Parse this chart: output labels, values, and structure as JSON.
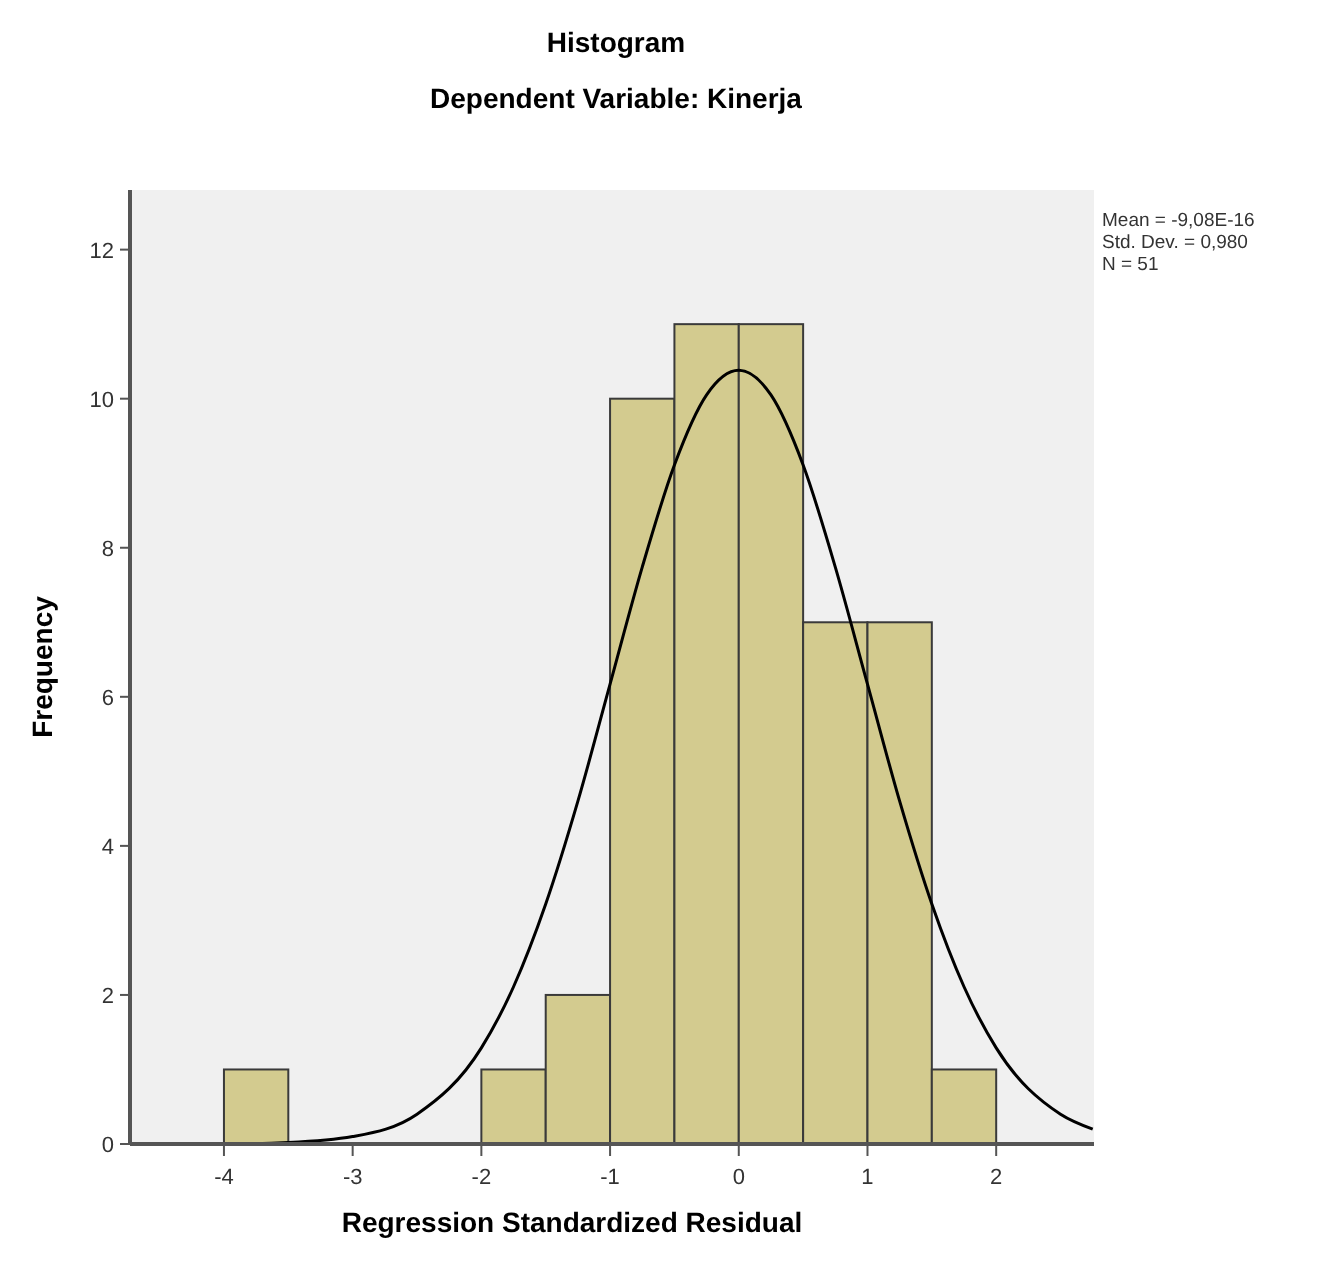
{
  "chart_data": {
    "type": "histogram",
    "title": "Histogram",
    "subtitle": "Dependent Variable: Kinerja",
    "xlabel": "Regression Standardized Residual",
    "ylabel": "Frequency",
    "bins": [
      -4,
      -3.5,
      -3,
      -2.5,
      -2,
      -1.5,
      -1,
      -0.5,
      0,
      0.5,
      1,
      1.5,
      2
    ],
    "series": [
      {
        "color": "#d3cb8f",
        "values": [
          1,
          0,
          0,
          0,
          1,
          2,
          10,
          11,
          11,
          7,
          7,
          1
        ]
      },
      {
        "type": "line",
        "color": "#000000",
        "x": [
          -4.7,
          -4,
          -3.5,
          -3,
          -2.5,
          -2,
          -1.75,
          -1.5,
          -1.25,
          -1,
          -0.75,
          -0.5,
          -0.25,
          0,
          0.25,
          0.5,
          0.75,
          1,
          1.25,
          1.5,
          1.75,
          2,
          2.5,
          2.75
        ],
        "values": [
          0,
          0,
          0.02,
          0.1,
          0.4,
          1.29,
          2.11,
          3.22,
          4.6,
          6.17,
          7.74,
          9.11,
          10.05,
          10.38,
          10.05,
          9.11,
          7.74,
          6.17,
          4.6,
          3.22,
          2.11,
          1.29,
          0.4,
          0.2
        ]
      }
    ],
    "xlim": [
      -4.73,
      2.76
    ],
    "xticks": [
      -4,
      -3,
      -2,
      -1,
      0,
      1,
      2
    ],
    "ylim": [
      0,
      12.8
    ],
    "yticks": [
      0,
      2,
      4,
      6,
      8,
      10,
      12
    ],
    "grid": false,
    "marker": "none",
    "line_style": "solid",
    "annotations": [
      "Mean = -9,08E-16",
      "Std. Dev. = 0,980",
      "N = 51"
    ]
  }
}
